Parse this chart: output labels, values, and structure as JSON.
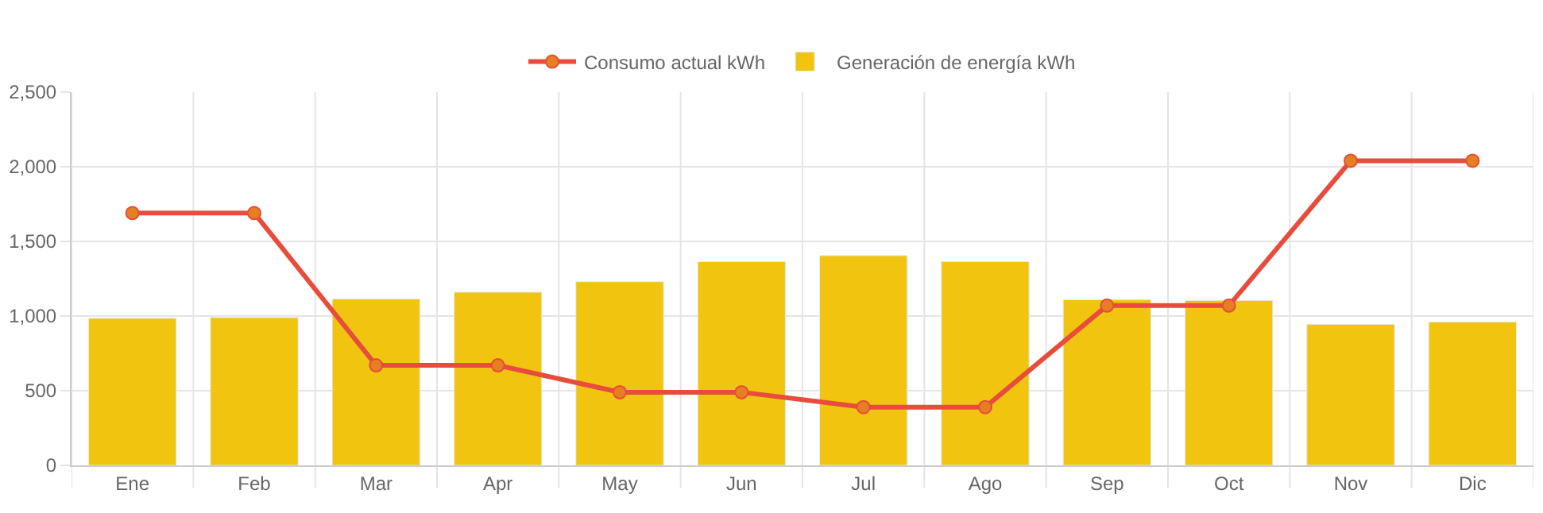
{
  "chart_data": {
    "type": "bar",
    "categories": [
      "Ene",
      "Feb",
      "Mar",
      "Apr",
      "May",
      "Jun",
      "Jul",
      "Ago",
      "Sep",
      "Oct",
      "Nov",
      "Dic"
    ],
    "series": [
      {
        "name": "Consumo actual kWh",
        "type": "line",
        "color": "#e74c3c",
        "marker": "circle",
        "values": [
          1690,
          1690,
          670,
          670,
          490,
          490,
          390,
          390,
          1070,
          1070,
          2040,
          2040
        ]
      },
      {
        "name": "Generación de energía kWh",
        "color": "#f1c40f",
        "values": [
          985,
          990,
          1115,
          1160,
          1230,
          1365,
          1405,
          1365,
          1110,
          1105,
          945,
          960
        ]
      }
    ],
    "ylim": [
      0,
      2500
    ],
    "yticks": [
      0,
      500,
      {
        "value": 1000,
        "label": "1,000"
      },
      {
        "value": 1500,
        "label": "1,500"
      },
      {
        "value": 2000,
        "label": "2,000"
      },
      {
        "value": 2500,
        "label": "2,500"
      }
    ],
    "grid": true,
    "legend": "top"
  }
}
